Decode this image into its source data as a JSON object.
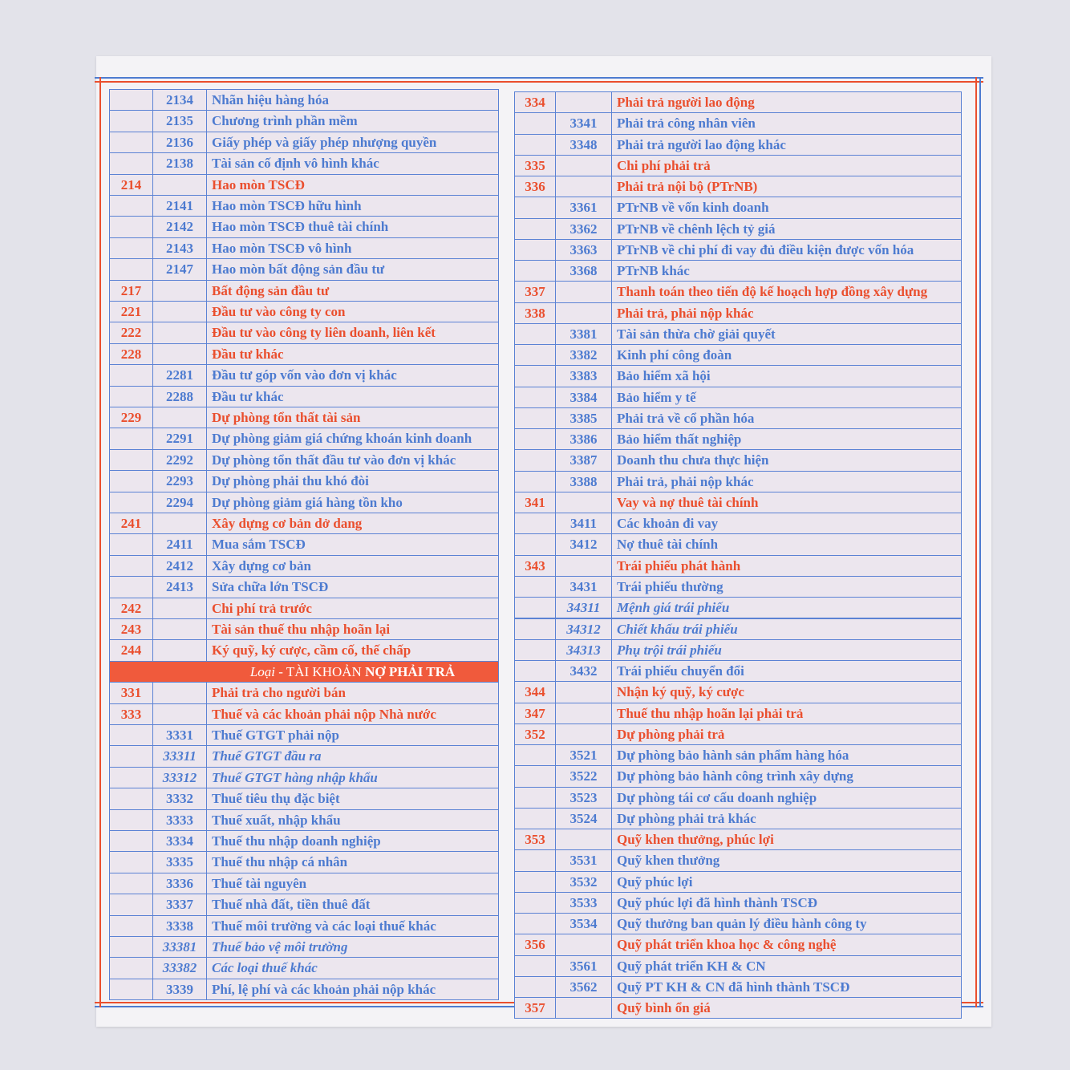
{
  "left_table": {
    "rows": [
      {
        "subaccount": "2134",
        "name": "Nhãn hiệu hàng hóa"
      },
      {
        "subaccount": "2135",
        "name": "Chương trình phần mềm"
      },
      {
        "subaccount": "2136",
        "name": "Giấy phép và giấy phép nhượng quyền"
      },
      {
        "subaccount": "2138",
        "name": "Tài sản cố định vô hình khác"
      },
      {
        "account": "214",
        "name": "Hao mòn TSCĐ"
      },
      {
        "subaccount": "2141",
        "name": "Hao mòn TSCĐ hữu hình"
      },
      {
        "subaccount": "2142",
        "name": "Hao mòn TSCĐ thuê tài chính"
      },
      {
        "subaccount": "2143",
        "name": "Hao mòn TSCĐ vô hình"
      },
      {
        "subaccount": "2147",
        "name": "Hao mòn bất động sản đầu tư"
      },
      {
        "account": "217",
        "name": "Bất động sản đầu tư"
      },
      {
        "account": "221",
        "name": "Đầu tư vào công ty con"
      },
      {
        "account": "222",
        "name": "Đầu tư vào công ty liên doanh, liên kết"
      },
      {
        "account": "228",
        "name": "Đầu tư khác"
      },
      {
        "subaccount": "2281",
        "name": "Đầu tư góp vốn vào đơn vị khác"
      },
      {
        "subaccount": "2288",
        "name": "Đầu tư khác"
      },
      {
        "account": "229",
        "name": "Dự phòng tổn thất tài sản"
      },
      {
        "subaccount": "2291",
        "name": "Dự phòng giảm giá chứng khoán kinh doanh"
      },
      {
        "subaccount": "2292",
        "name": "Dự phòng tổn thất đầu tư vào đơn vị khác"
      },
      {
        "subaccount": "2293",
        "name": "Dự phòng phải thu khó đòi"
      },
      {
        "subaccount": "2294",
        "name": "Dự phòng giảm giá hàng tồn kho"
      },
      {
        "account": "241",
        "name": "Xây dựng cơ bản dở dang"
      },
      {
        "subaccount": "2411",
        "name": "Mua sắm TSCĐ"
      },
      {
        "subaccount": "2412",
        "name": "Xây dựng cơ bản"
      },
      {
        "subaccount": "2413",
        "name": "Sửa chữa lớn TSCĐ"
      },
      {
        "account": "242",
        "name": "Chi phí trả trước"
      },
      {
        "account": "243",
        "name": "Tài sản thuế thu nhập hoãn lại"
      },
      {
        "account": "244",
        "name": "Ký quỹ, ký cược, cầm cố, thế chấp"
      },
      {
        "heading": {
          "prefix": "Loại -",
          "label": "TÀI KHOẢN",
          "emphasis": "NỢ PHẢI TRẢ"
        }
      },
      {
        "account": "331",
        "name": "Phải trả cho người bán"
      },
      {
        "account": "333",
        "name": "Thuế và các khoản phải nộp Nhà nước"
      },
      {
        "subaccount": "3331",
        "name": "Thuế GTGT phải nộp"
      },
      {
        "subaccount": "33311",
        "name": "Thuế GTGT đầu ra"
      },
      {
        "subaccount": "33312",
        "name": "Thuế GTGT hàng nhập khẩu"
      },
      {
        "subaccount": "3332",
        "name": "Thuế tiêu thụ đặc biệt"
      },
      {
        "subaccount": "3333",
        "name": "Thuế xuất, nhập khẩu"
      },
      {
        "subaccount": "3334",
        "name": "Thuế thu nhập doanh nghiệp"
      },
      {
        "subaccount": "3335",
        "name": "Thuế thu nhập cá nhân"
      },
      {
        "subaccount": "3336",
        "name": "Thuế tài nguyên"
      },
      {
        "subaccount": "3337",
        "name": "Thuế nhà đất, tiền thuê đất"
      },
      {
        "subaccount": "3338",
        "name": "Thuế môi trường và các loại thuế khác"
      },
      {
        "subaccount": "33381",
        "name": "Thuế bảo vệ môi trường"
      },
      {
        "subaccount": "33382",
        "name": "Các loại thuế khác"
      },
      {
        "subaccount": "3339",
        "name": "Phí, lệ phí và các khoản phải nộp khác"
      }
    ]
  },
  "right_table": {
    "rows": [
      {
        "account": "334",
        "name": "Phải trả người lao động"
      },
      {
        "subaccount": "3341",
        "name": "Phải trả công nhân viên"
      },
      {
        "subaccount": "3348",
        "name": "Phải trả người lao động khác"
      },
      {
        "account": "335",
        "name": "Chi phí phải trả"
      },
      {
        "account": "336",
        "name": "Phải trả nội bộ (PTrNB)"
      },
      {
        "subaccount": "3361",
        "name": "PTrNB về vốn kinh doanh"
      },
      {
        "subaccount": "3362",
        "name": "PTrNB về chênh lệch tỷ giá"
      },
      {
        "subaccount": "3363",
        "name": "PTrNB về chi phí đi vay đủ điều kiện được vốn hóa"
      },
      {
        "subaccount": "3368",
        "name": "PTrNB khác"
      },
      {
        "account": "337",
        "name": "Thanh toán theo tiến độ kế hoạch hợp đồng xây dựng"
      },
      {
        "account": "338",
        "name": "Phải trả, phải nộp khác"
      },
      {
        "subaccount": "3381",
        "name": "Tài sản thừa chờ giải quyết"
      },
      {
        "subaccount": "3382",
        "name": "Kinh phí công đoàn"
      },
      {
        "subaccount": "3383",
        "name": "Bảo hiểm xã hội"
      },
      {
        "subaccount": "3384",
        "name": "Bảo hiểm y tế"
      },
      {
        "subaccount": "3385",
        "name": "Phải trả về cổ phần hóa"
      },
      {
        "subaccount": "3386",
        "name": "Bảo hiểm thất nghiệp"
      },
      {
        "subaccount": "3387",
        "name": "Doanh thu chưa thực hiện"
      },
      {
        "subaccount": "3388",
        "name": "Phải trả, phải nộp khác"
      },
      {
        "account": "341",
        "name": "Vay và nợ thuê tài chính"
      },
      {
        "subaccount": "3411",
        "name": "Các khoản đi vay"
      },
      {
        "subaccount": "3412",
        "name": "Nợ thuê tài chính"
      },
      {
        "account": "343",
        "name": "Trái phiếu phát hành"
      },
      {
        "subaccount": "3431",
        "name": "Trái phiếu thường"
      },
      {
        "subaccount": "34311",
        "name": "Mệnh giá trái phiếu"
      },
      {
        "subaccount": "34312",
        "name": "Chiết khấu trái phiếu"
      },
      {
        "subaccount": "34313",
        "name": "Phụ trội trái phiếu"
      },
      {
        "subaccount": "3432",
        "name": "Trái phiếu chuyển đổi"
      },
      {
        "account": "344",
        "name": "Nhận ký quỹ, ký cược"
      },
      {
        "account": "347",
        "name": "Thuế thu nhập hoãn lại phải trả"
      },
      {
        "account": "352",
        "name": "Dự phòng phải trả"
      },
      {
        "subaccount": "3521",
        "name": "Dự phòng bảo hành sản phẩm hàng hóa"
      },
      {
        "subaccount": "3522",
        "name": "Dự phòng bảo hành công trình xây dựng"
      },
      {
        "subaccount": "3523",
        "name": "Dự phòng tái cơ cấu doanh nghiệp"
      },
      {
        "subaccount": "3524",
        "name": "Dự phòng phải trả khác"
      },
      {
        "account": "353",
        "name": "Quỹ khen thưởng, phúc lợi"
      },
      {
        "subaccount": "3531",
        "name": "Quỹ khen thưởng"
      },
      {
        "subaccount": "3532",
        "name": "Quỹ phúc lợi"
      },
      {
        "subaccount": "3533",
        "name": "Quỹ phúc lợi đã hình thành TSCĐ"
      },
      {
        "subaccount": "3534",
        "name": "Quỹ thưởng ban quản lý điều hành công ty"
      },
      {
        "account": "356",
        "name": "Quỹ phát triển khoa học & công nghệ"
      },
      {
        "subaccount": "3561",
        "name": "Quỹ phát triển KH & CN"
      },
      {
        "subaccount": "3562",
        "name": "Quỹ PT KH & CN đã hình thành TSCĐ"
      },
      {
        "account": "357",
        "name": "Quỹ bình ổn giá"
      }
    ]
  }
}
